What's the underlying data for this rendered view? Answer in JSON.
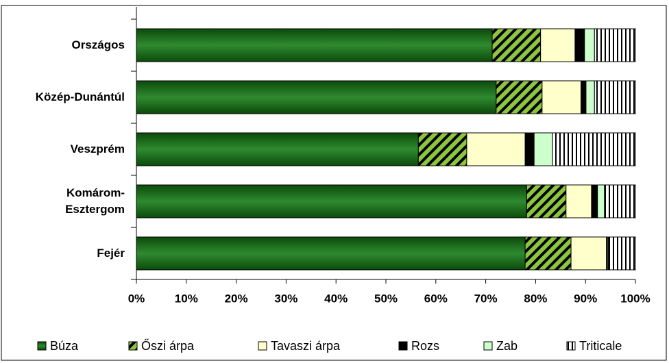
{
  "chart_data": {
    "type": "stacked_bar_horizontal",
    "categories": [
      "Országos",
      "Közép-Dunántúl",
      "Veszprém",
      "Komárom-\nEsztergom",
      "Fejér"
    ],
    "series": [
      {
        "name": "Búza",
        "color": "#1f6e1f",
        "values": [
          71.3,
          72.1,
          56.5,
          78.2,
          77.9
        ]
      },
      {
        "name": "Őszi  árpa",
        "color": "#8cc63f",
        "pattern": "diagonal",
        "values": [
          9.7,
          9.2,
          9.7,
          7.9,
          9.2
        ]
      },
      {
        "name": "Tavaszi árpa",
        "color": "#ffffcc",
        "values": [
          6.9,
          7.8,
          11.7,
          5.1,
          7.1
        ]
      },
      {
        "name": "Rozs",
        "color": "#000000",
        "values": [
          1.9,
          1.0,
          1.8,
          1.2,
          0.2
        ]
      },
      {
        "name": "Zab",
        "color": "#ccffcc",
        "values": [
          2.0,
          1.7,
          3.7,
          1.4,
          0.2
        ]
      },
      {
        "name": "Triticale",
        "color": "#ffffff",
        "pattern": "vertical",
        "values": [
          8.2,
          8.2,
          16.6,
          6.2,
          5.4
        ]
      }
    ],
    "xlim": [
      0,
      100
    ],
    "xticks": [
      {
        "value": 0,
        "label": "0%"
      },
      {
        "value": 10,
        "label": "10%"
      },
      {
        "value": 20,
        "label": "20%"
      },
      {
        "value": 30,
        "label": "30%"
      },
      {
        "value": 40,
        "label": "40%"
      },
      {
        "value": 50,
        "label": "50%"
      },
      {
        "value": 60,
        "label": "60%"
      },
      {
        "value": 70,
        "label": "70%"
      },
      {
        "value": 80,
        "label": "80%"
      },
      {
        "value": 90,
        "label": "90%"
      },
      {
        "value": 100,
        "label": "100%"
      }
    ],
    "legend": "bottom"
  }
}
